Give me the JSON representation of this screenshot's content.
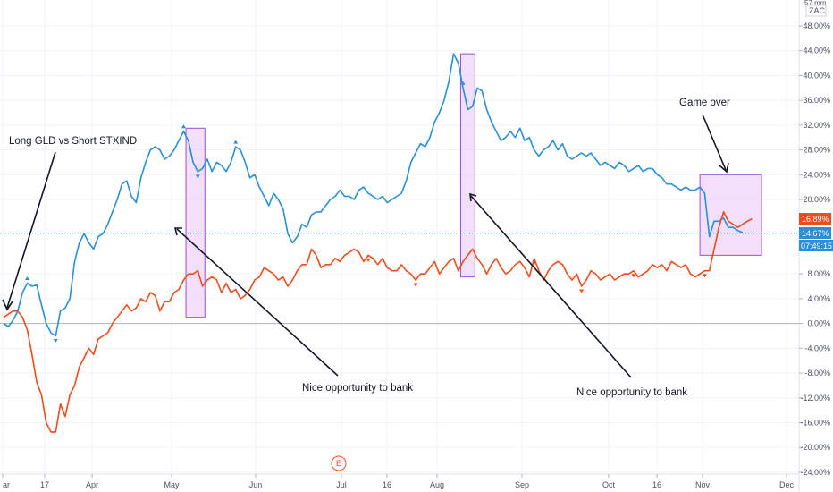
{
  "chart_data": {
    "type": "line",
    "x_ticks": [
      "ar",
      "17",
      "Apr",
      "May",
      "Jun",
      "Jul",
      "16",
      "Aug",
      "Sep",
      "Oct",
      "16",
      "Nov",
      "Dec"
    ],
    "y_ticks": [
      "48.00%",
      "44.00%",
      "40.00%",
      "36.00%",
      "32.00%",
      "28.00%",
      "24.00%",
      "20.00%",
      "8.00%",
      "4.00%",
      "0.00%",
      "-4.00%",
      "-8.00%",
      "-12.00%",
      "-16.00%",
      "-20.00%",
      "-24.00%"
    ],
    "ylim": [
      -24,
      56
    ],
    "y_unit": "%",
    "scale_label": "ZAC",
    "scale_top": "57 mm",
    "zero_line": 0,
    "series": [
      {
        "color": "#2a8fd8",
        "values": [
          0,
          -0.5,
          0.5,
          2,
          5,
          6.5,
          6,
          6.2,
          3,
          0,
          -1.5,
          -2,
          2,
          2.5,
          4,
          10,
          13,
          14.5,
          13,
          12,
          14,
          14.5,
          16,
          18,
          20,
          22.5,
          23,
          20.5,
          19.5,
          23.5,
          26,
          28,
          28.5,
          28,
          26.5,
          27,
          28,
          29.5,
          31,
          29.5,
          26,
          24.5,
          25,
          26.5,
          24.5,
          26,
          25.5,
          24.5,
          26,
          28.5,
          28,
          26,
          23.5,
          24,
          22,
          20.5,
          19,
          21,
          20,
          18.5,
          14.5,
          13,
          14,
          16,
          15.5,
          17.5,
          18,
          18,
          19,
          20,
          20.5,
          21.5,
          20.5,
          20.5,
          20,
          21.5,
          22,
          21,
          20.5,
          20,
          20.5,
          19.5,
          20,
          20.5,
          21,
          23,
          26,
          27.5,
          29,
          28.5,
          30,
          32.5,
          34,
          36,
          39,
          43.5,
          42,
          38,
          34.5,
          35,
          38,
          37.5,
          34.5,
          32.5,
          31,
          29.5,
          30,
          31,
          30,
          31.5,
          29.5,
          30,
          28,
          27,
          28,
          28.5,
          29.5,
          28,
          29,
          27,
          26.5,
          27,
          27.5,
          27,
          27.5,
          26.5,
          25.5,
          26,
          25.5,
          25,
          26,
          25.5,
          24.5,
          25,
          25.5,
          24.5,
          25,
          25,
          24,
          23.5,
          22.5,
          22.5,
          22,
          21.5,
          22,
          21.5,
          21.5,
          22,
          21,
          14,
          16.5,
          16.5,
          17,
          15.5,
          15.5,
          15,
          14.67
        ]
      },
      {
        "color": "#f04c1c",
        "values": [
          1,
          1.5,
          2,
          2,
          1,
          -1,
          -5,
          -9.5,
          -11.5,
          -16,
          -17.5,
          -17.5,
          -13,
          -15,
          -11.5,
          -10,
          -7,
          -5.5,
          -4,
          -5,
          -2.5,
          -2,
          -1.5,
          0,
          1,
          2,
          3,
          2,
          2.5,
          4,
          3.5,
          5,
          4.5,
          2,
          3.5,
          3.5,
          5,
          5.5,
          7,
          8,
          8,
          8.5,
          6,
          7,
          7.5,
          7,
          5,
          6.5,
          5,
          5.5,
          4,
          4.5,
          5.5,
          7,
          7.5,
          9,
          8.5,
          8,
          7,
          7.5,
          6,
          7,
          8.5,
          9.5,
          9.5,
          12,
          11,
          9,
          9.5,
          9.5,
          10.5,
          10,
          11,
          11.5,
          12,
          11.5,
          10,
          11,
          10.5,
          9.5,
          10.5,
          9,
          8.5,
          8.5,
          9.5,
          8.5,
          8,
          7,
          8,
          8,
          9,
          10,
          8,
          9,
          10,
          10.5,
          8.5,
          10,
          11,
          12,
          10.5,
          9.5,
          8,
          9.5,
          10.5,
          9,
          8,
          8.5,
          9.5,
          10,
          9,
          7.5,
          10.5,
          8.5,
          7,
          8.5,
          9.5,
          10,
          9.5,
          8,
          7,
          8,
          6,
          7,
          8.5,
          8,
          7,
          7.5,
          8,
          7,
          7.5,
          8,
          8,
          8.5,
          7.5,
          8,
          8.5,
          9.5,
          9,
          9.5,
          8.5,
          10,
          9.5,
          9,
          9.5,
          8,
          7.5,
          8,
          8.5,
          8.5,
          12,
          15.5,
          18,
          16.5,
          16,
          15.5,
          16,
          16.5,
          16.89
        ]
      }
    ],
    "blue_marks": [
      [
        5,
        "up"
      ],
      [
        11,
        "down"
      ],
      [
        38,
        "up"
      ],
      [
        41,
        "down"
      ],
      [
        49,
        "up"
      ],
      [
        97,
        "up"
      ]
    ],
    "red_marks": [
      [
        77,
        "down"
      ],
      [
        87,
        "down"
      ],
      [
        112,
        "down"
      ],
      [
        122,
        "down"
      ],
      [
        133,
        "down"
      ],
      [
        148,
        "down"
      ]
    ],
    "shaded_boxes": [
      {
        "x_range": [
          38.5,
          42.5
        ],
        "y_range": [
          1,
          31.5
        ]
      },
      {
        "x_range": [
          96.5,
          99.5
        ],
        "y_range": [
          7.5,
          43.5
        ]
      },
      {
        "x_range": [
          147,
          160
        ],
        "y_range": [
          11,
          24
        ]
      }
    ],
    "annotations": [
      {
        "text": "Long GLD vs Short STXIND"
      },
      {
        "text": "Nice opportunity to bank"
      },
      {
        "text": "Nice opportunity to bank"
      },
      {
        "text": "Game over"
      }
    ],
    "price_badges": [
      {
        "text": "16.89%",
        "color": "#f04c1c"
      },
      {
        "text": "14.67%",
        "color": "#2a8fd8"
      },
      {
        "text": "07:49:15",
        "color": "#2a8fd8"
      }
    ],
    "earnings_marker": "E"
  }
}
